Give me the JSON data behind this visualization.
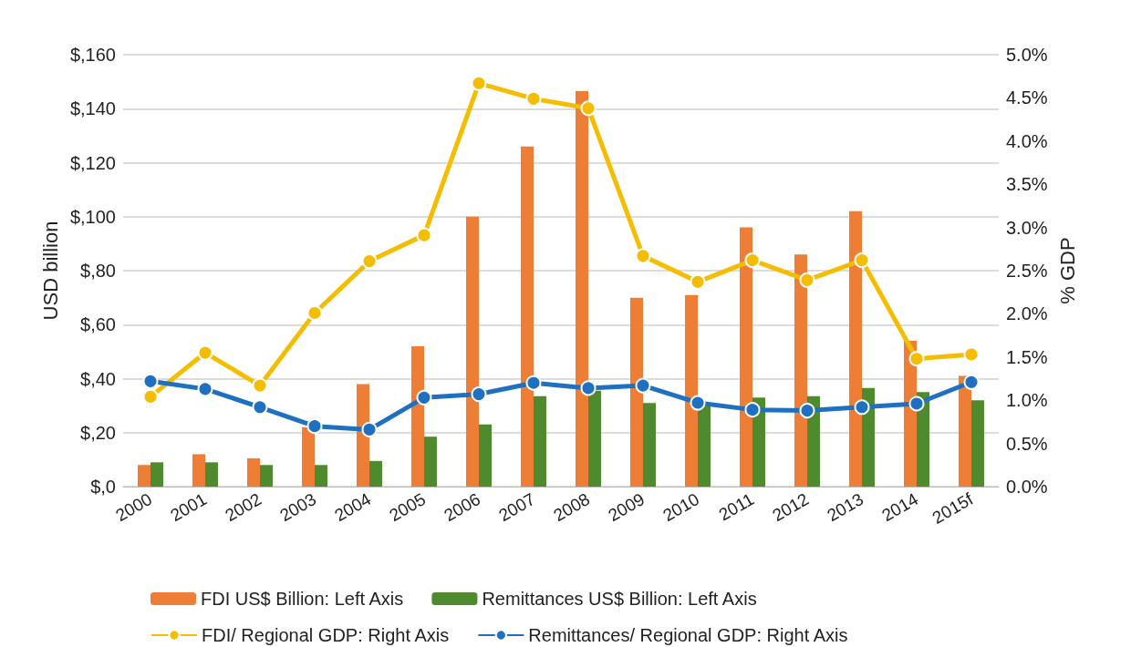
{
  "chart_data": {
    "type": "bar",
    "categories": [
      "2000",
      "2001",
      "2002",
      "2003",
      "2004",
      "2005",
      "2006",
      "2007",
      "2008",
      "2009",
      "2010",
      "2011",
      "2012",
      "2013",
      "2014",
      "2015f"
    ],
    "series": [
      {
        "name": "FDI US$ Billion: Left Axis",
        "color": "#ee7d36",
        "values": [
          8,
          12,
          10.5,
          22,
          38,
          52,
          100,
          126,
          146.5,
          70,
          71,
          96,
          86,
          102,
          54,
          41
        ]
      },
      {
        "name": "Remittances US$ Billion: Left Axis",
        "color": "#4f8a2f",
        "values": [
          9,
          9,
          8,
          8,
          9.5,
          18.5,
          23,
          33.5,
          35.5,
          31,
          30,
          33,
          33.5,
          36.5,
          35,
          32
        ]
      },
      {
        "name": "FDI/ Regional GDP: Right Axis",
        "type": "line",
        "axis": "y2",
        "color": "#f5bd00",
        "values": [
          1.04,
          1.55,
          1.17,
          2.01,
          2.61,
          2.91,
          4.67,
          4.49,
          4.38,
          2.67,
          2.37,
          2.62,
          2.39,
          2.62,
          1.48,
          1.53
        ]
      },
      {
        "name": "Remittances/ Regional GDP: Right Axis",
        "type": "line",
        "axis": "y2",
        "color": "#1f70c1",
        "values": [
          1.22,
          1.13,
          0.92,
          0.7,
          0.66,
          1.03,
          1.07,
          1.2,
          1.14,
          1.17,
          0.97,
          0.89,
          0.88,
          0.92,
          0.96,
          1.21
        ]
      }
    ],
    "ylabel": "USD billion",
    "y2label": "% GDP",
    "ylim": [
      0,
      160
    ],
    "yticks": [
      {
        "value": 0,
        "label": "$,0"
      },
      {
        "value": 20,
        "label": "$,20"
      },
      {
        "value": 40,
        "label": "$,40"
      },
      {
        "value": 60,
        "label": "$,60"
      },
      {
        "value": 80,
        "label": "$,80"
      },
      {
        "value": 100,
        "label": "$,100"
      },
      {
        "value": 120,
        "label": "$,120"
      },
      {
        "value": 140,
        "label": "$,140"
      },
      {
        "value": 160,
        "label": "$,160"
      }
    ],
    "y2lim": [
      0,
      5
    ],
    "y2ticks": [
      {
        "value": 0,
        "label": "0.0%"
      },
      {
        "value": 0.5,
        "label": "0.5%"
      },
      {
        "value": 1,
        "label": "1.0%"
      },
      {
        "value": 1.5,
        "label": "1.5%"
      },
      {
        "value": 2,
        "label": "2.0%"
      },
      {
        "value": 2.5,
        "label": "2.5%"
      },
      {
        "value": 3,
        "label": "3.0%"
      },
      {
        "value": 3.5,
        "label": "3.5%"
      },
      {
        "value": 4,
        "label": "4.0%"
      },
      {
        "value": 4.5,
        "label": "4.5%"
      },
      {
        "value": 5,
        "label": "5.0%"
      }
    ],
    "grid": "y",
    "legend": "bottom",
    "marker": "circle"
  }
}
